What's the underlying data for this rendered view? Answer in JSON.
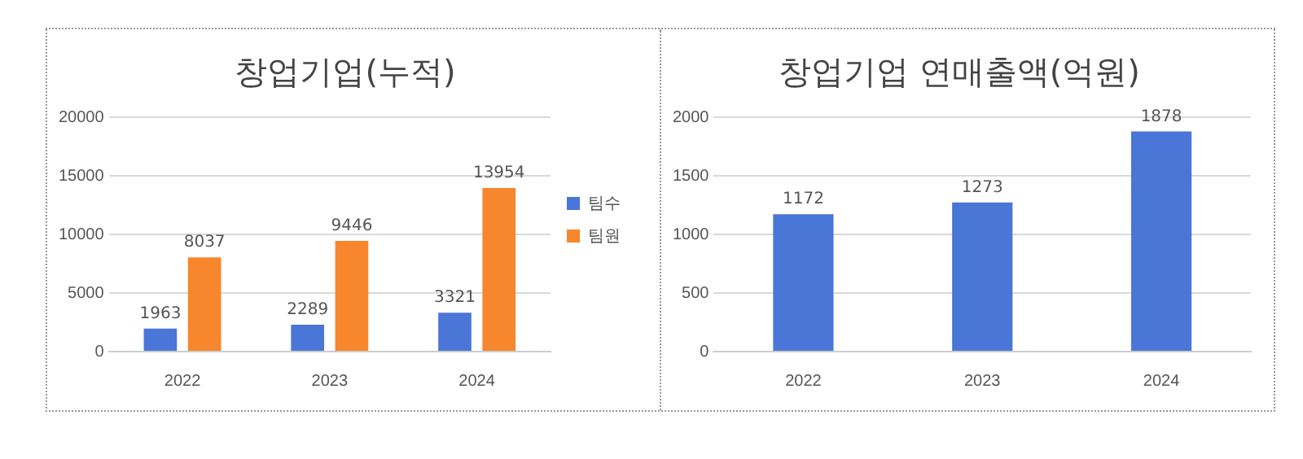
{
  "chart_data": [
    {
      "type": "bar",
      "title": "창업기업(누적)",
      "categories": [
        "2022",
        "2023",
        "2024"
      ],
      "series": [
        {
          "name": "팀수",
          "color": "#4a76d8",
          "values": [
            1963,
            2289,
            3321
          ]
        },
        {
          "name": "팀원",
          "color": "#f7862d",
          "values": [
            8037,
            9446,
            13954
          ]
        }
      ],
      "ylim": [
        0,
        20000
      ],
      "yticks": [
        0,
        5000,
        10000,
        15000,
        20000
      ],
      "grid": "y",
      "legend": "right",
      "data_labels": true
    },
    {
      "type": "bar",
      "title": "창업기업 연매출액(억원)",
      "categories": [
        "2022",
        "2023",
        "2024"
      ],
      "series": [
        {
          "color": "#4a76d8",
          "values": [
            1172,
            1273,
            1878
          ]
        }
      ],
      "ylim": [
        0,
        2000
      ],
      "yticks": [
        0,
        500,
        1000,
        1500,
        2000
      ],
      "grid": "y",
      "data_labels": true
    }
  ]
}
